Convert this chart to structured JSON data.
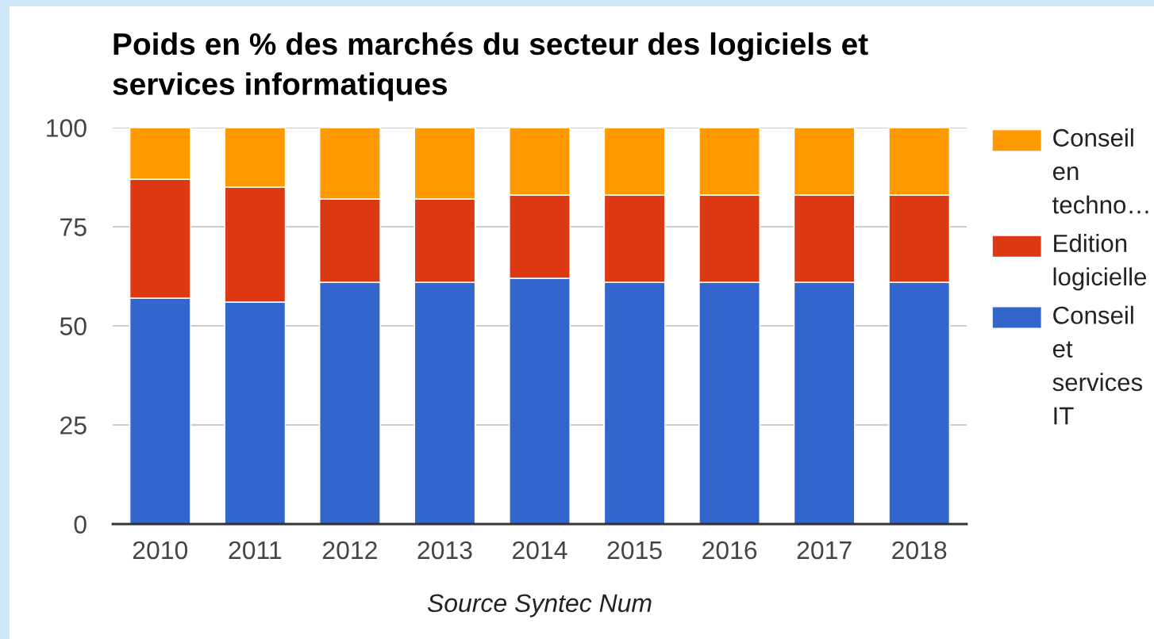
{
  "chart_data": {
    "type": "bar",
    "title": "Poids en % des marchés du secteur des logiciels et\nservices informatiques",
    "categories": [
      "2010",
      "2011",
      "2012",
      "2013",
      "2014",
      "2015",
      "2016",
      "2017",
      "2018"
    ],
    "series": [
      {
        "name": "Conseil et services IT",
        "color": "#3366cc",
        "values": [
          57,
          56,
          61,
          61,
          62,
          61,
          61,
          61,
          61
        ]
      },
      {
        "name": "Edition logicielle",
        "color": "#dc3912",
        "values": [
          30,
          29,
          21,
          21,
          21,
          22,
          22,
          22,
          22
        ]
      },
      {
        "name": "Conseil en techno…",
        "color": "#ff9900",
        "values": [
          13,
          15,
          18,
          18,
          17,
          17,
          17,
          17,
          17
        ]
      }
    ],
    "stacked": true,
    "ylim": [
      0,
      100
    ],
    "yticks": [
      0,
      25,
      50,
      75,
      100
    ],
    "grid": "y",
    "legend": "right",
    "annotations": [
      "Source Syntec Num"
    ]
  }
}
